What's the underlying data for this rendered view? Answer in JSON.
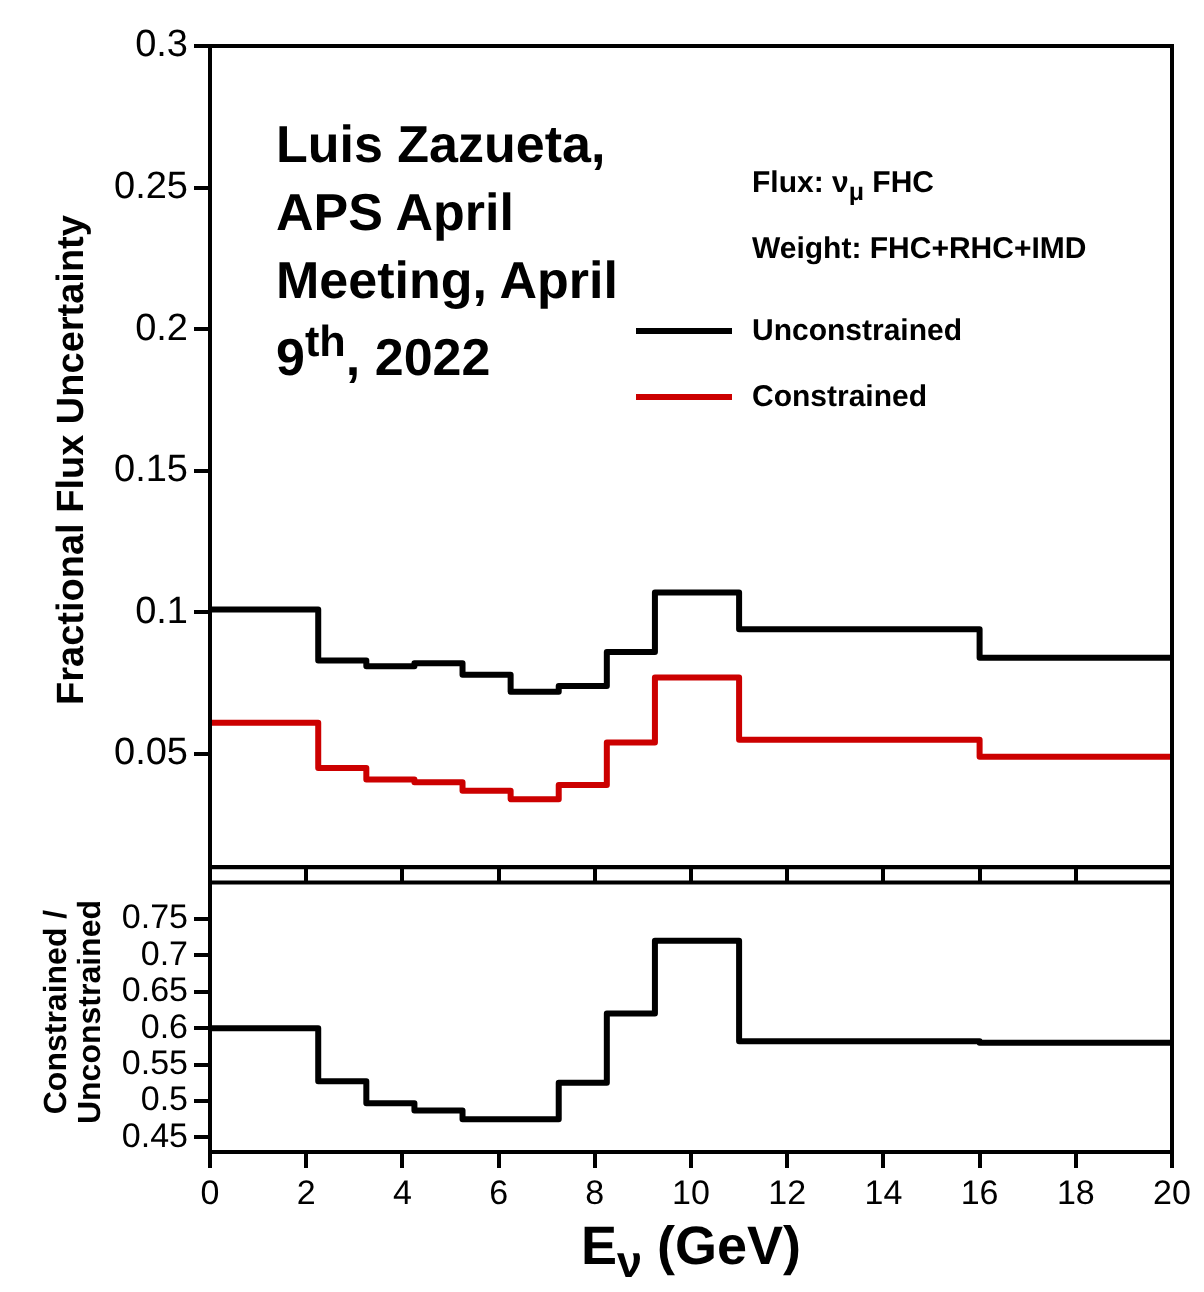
{
  "chart_data": [
    {
      "type": "step",
      "ylabel": "Fractional Flux Uncertainty",
      "annotations": [
        "Luis Zazueta, APS April Meeting, April 9$^{th}$, 2022",
        "Flux: ν$_{μ}$ FHC",
        "Weight: FHC+RHC+IMD"
      ],
      "x": [
        0,
        2.25,
        3.25,
        4.25,
        5.25,
        6.25,
        7.25,
        8.25,
        9.25,
        11,
        16,
        20
      ],
      "series": [
        {
          "name": "Unconstrained",
          "color": "#000000",
          "values": [
            0.101,
            0.101,
            0.083,
            0.081,
            0.082,
            0.078,
            0.072,
            0.074,
            0.086,
            0.107,
            0.094,
            0.084
          ]
        },
        {
          "name": "Constrained",
          "color": "#cc0000",
          "values": [
            0.061,
            0.061,
            0.045,
            0.041,
            0.04,
            0.037,
            0.034,
            0.039,
            0.054,
            0.077,
            0.055,
            0.049
          ]
        }
      ],
      "xlim": [
        0,
        20
      ],
      "xticks": [
        0,
        2,
        4,
        6,
        8,
        10,
        12,
        14,
        16,
        18,
        20
      ],
      "ylim": [
        0.01,
        0.3
      ],
      "yticks": [
        0.05,
        0.1,
        0.15,
        0.2,
        0.25,
        0.3
      ],
      "legend": "top right",
      "tick_labels": "y"
    },
    {
      "type": "step",
      "xlabel": "E$_{ν}$ (GeV)",
      "ylabel": "Constrained / Unconstrained",
      "x": [
        0,
        2.25,
        3.25,
        4.25,
        5.25,
        6.25,
        7.25,
        8.25,
        9.25,
        11,
        16,
        20
      ],
      "series": [
        {
          "color": "#000000",
          "values": [
            0.6,
            0.6,
            0.527,
            0.497,
            0.487,
            0.475,
            0.475,
            0.525,
            0.62,
            0.72,
            0.582,
            0.58
          ]
        }
      ],
      "xlim": [
        0,
        20
      ],
      "xticks": [
        0,
        2,
        4,
        6,
        8,
        10,
        12,
        14,
        16,
        18,
        20
      ],
      "ylim": [
        0.43,
        0.8
      ],
      "yticks": [
        0.45,
        0.5,
        0.55,
        0.6,
        0.65,
        0.7,
        0.75
      ]
    }
  ]
}
